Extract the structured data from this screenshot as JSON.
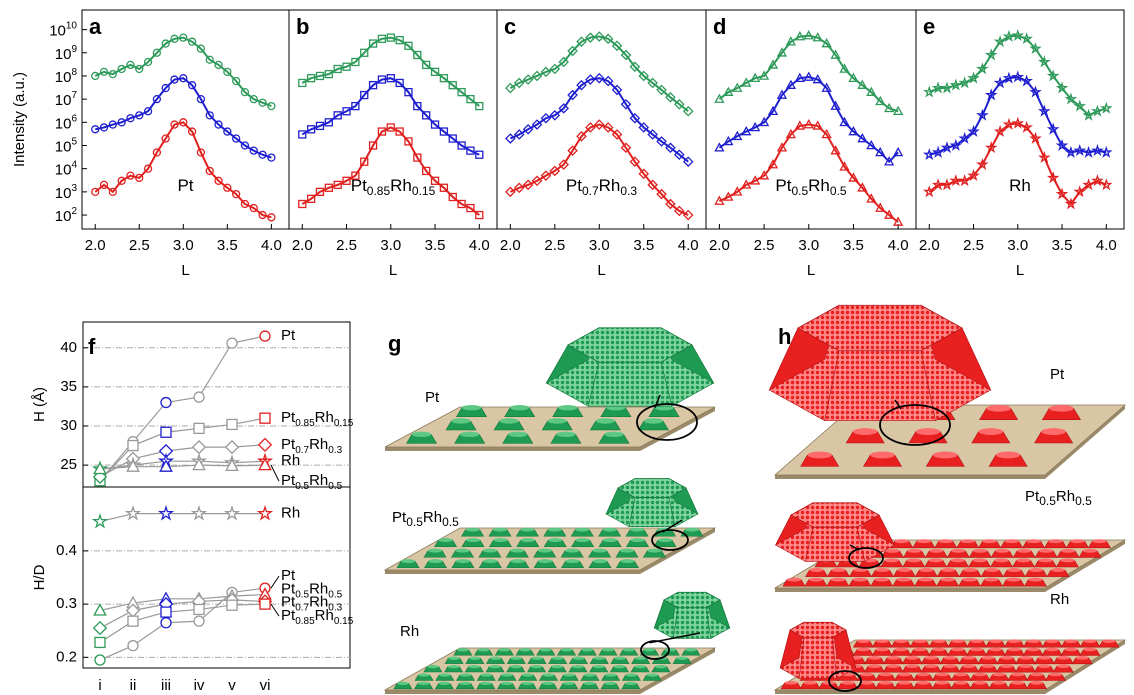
{
  "chart_data": [
    {
      "type": "line",
      "panel": "a",
      "label_parts": [
        "Pt"
      ],
      "log_y": true,
      "marker": "circle",
      "y_label": "Intensity (a.u.)",
      "x_label": "L",
      "xlim": [
        1.85,
        4.2
      ],
      "ylim": [
        25,
        70000000000.0
      ],
      "xticks": [
        {
          "value": 2,
          "label": "2.0"
        },
        2.5,
        {
          "value": 3,
          "label": "3.0"
        },
        3.5,
        {
          "value": 4,
          "label": "4.0"
        }
      ],
      "yticks": [
        {
          "value": 100.0,
          "label": "10",
          "exponent": "2"
        },
        {
          "value": 1000.0,
          "label": "10",
          "exponent": "3"
        },
        {
          "value": 10000.0,
          "label": "10",
          "exponent": "4"
        },
        {
          "value": 100000.0,
          "label": "10",
          "exponent": "5"
        },
        {
          "value": 1000000.0,
          "label": "10",
          "exponent": "6"
        },
        {
          "value": 10000000.0,
          "label": "10",
          "exponent": "7"
        },
        {
          "value": 100000000.0,
          "label": "10",
          "exponent": "8"
        },
        {
          "value": 1000000000.0,
          "label": "10",
          "exponent": "9"
        },
        {
          "value": 10000000000.0,
          "label": "10",
          "exponent": "10"
        }
      ],
      "x": [
        2.0,
        2.1,
        2.2,
        2.3,
        2.4,
        2.5,
        2.6,
        2.7,
        2.8,
        2.9,
        3.0,
        3.1,
        3.2,
        3.3,
        3.4,
        3.5,
        3.6,
        3.7,
        3.8,
        3.9,
        4.0
      ],
      "series": [
        {
          "color": "#2e9a5a",
          "values": [
            100000000.0,
            150000000.0,
            120000000.0,
            200000000.0,
            300000000.0,
            200000000.0,
            400000000.0,
            1000000000.0,
            2500000000.0,
            4000000000.0,
            4500000000.0,
            3000000000.0,
            1500000000.0,
            500000000.0,
            300000000.0,
            150000000.0,
            60000000.0,
            20000000.0,
            10000000.0,
            7000000.0,
            5000000.0
          ]
        },
        {
          "color": "#1f1fd0",
          "values": [
            500000.0,
            600000.0,
            800000.0,
            1000000.0,
            1500000.0,
            2000000.0,
            3000000.0,
            10000000.0,
            30000000.0,
            70000000.0,
            80000000.0,
            40000000.0,
            10000000.0,
            2000000.0,
            800000.0,
            400000.0,
            200000.0,
            100000.0,
            60000.0,
            40000.0,
            30000.0
          ]
        },
        {
          "color": "#e0201e",
          "values": [
            1000.0,
            2000.0,
            1000.0,
            3000.0,
            5000.0,
            4000.0,
            10000.0,
            50000.0,
            200000.0,
            800000.0,
            1000000.0,
            400000.0,
            50000.0,
            8000.0,
            3000.0,
            1500.0,
            800.0,
            300.0,
            200.0,
            100.0,
            80.0
          ]
        }
      ]
    },
    {
      "type": "line",
      "panel": "b",
      "label_parts": [
        "Pt",
        "0.85",
        "Rh",
        "0.15"
      ],
      "log_y": true,
      "marker": "square",
      "x_label": "L",
      "xlim": [
        1.85,
        4.2
      ],
      "ylim": [
        25,
        70000000000.0
      ],
      "xticks": [
        {
          "value": 2,
          "label": "2.0"
        },
        2.5,
        {
          "value": 3,
          "label": "3.0"
        },
        3.5,
        {
          "value": 4,
          "label": "4.0"
        }
      ],
      "x": [
        2.0,
        2.1,
        2.2,
        2.3,
        2.4,
        2.5,
        2.6,
        2.7,
        2.8,
        2.9,
        3.0,
        3.1,
        3.2,
        3.3,
        3.4,
        3.5,
        3.6,
        3.7,
        3.8,
        3.9,
        4.0
      ],
      "series": [
        {
          "color": "#2e9a5a",
          "values": [
            50000000.0,
            80000000.0,
            100000000.0,
            120000000.0,
            200000000.0,
            250000000.0,
            400000000.0,
            1000000000.0,
            2500000000.0,
            4000000000.0,
            4500000000.0,
            3500000000.0,
            2000000000.0,
            800000000.0,
            300000000.0,
            150000000.0,
            80000000.0,
            40000000.0,
            20000000.0,
            10000000.0,
            5000000.0
          ]
        },
        {
          "color": "#1f1fd0",
          "values": [
            300000.0,
            500000.0,
            700000.0,
            1000000.0,
            2000000.0,
            3000000.0,
            5000000.0,
            15000000.0,
            40000000.0,
            70000000.0,
            80000000.0,
            50000000.0,
            20000000.0,
            5000000.0,
            2000000.0,
            800000.0,
            400000.0,
            200000.0,
            100000.0,
            60000.0,
            40000.0
          ]
        },
        {
          "color": "#e0201e",
          "values": [
            300.0,
            500.0,
            1000.0,
            1500.0,
            2000.0,
            3000.0,
            5000.0,
            20000.0,
            100000.0,
            400000.0,
            600000.0,
            400000.0,
            150000.0,
            30000.0,
            8000.0,
            3000.0,
            1500.0,
            600.0,
            300.0,
            200.0,
            100.0
          ]
        }
      ]
    },
    {
      "type": "line",
      "panel": "c",
      "label_parts": [
        "Pt",
        "0.7",
        "Rh",
        "0.3"
      ],
      "log_y": true,
      "marker": "diamond",
      "x_label": "L",
      "xlim": [
        1.85,
        4.2
      ],
      "ylim": [
        25,
        70000000000.0
      ],
      "xticks": [
        {
          "value": 2,
          "label": "2.0"
        },
        2.5,
        {
          "value": 3,
          "label": "3.0"
        },
        3.5,
        {
          "value": 4,
          "label": "4.0"
        }
      ],
      "x": [
        2.0,
        2.1,
        2.2,
        2.3,
        2.4,
        2.5,
        2.6,
        2.7,
        2.8,
        2.9,
        3.0,
        3.1,
        3.2,
        3.3,
        3.4,
        3.5,
        3.6,
        3.7,
        3.8,
        3.9,
        4.0
      ],
      "series": [
        {
          "color": "#2e9a5a",
          "values": [
            30000000.0,
            50000000.0,
            70000000.0,
            100000000.0,
            150000000.0,
            200000000.0,
            400000000.0,
            1200000000.0,
            3000000000.0,
            4500000000.0,
            5000000000.0,
            4000000000.0,
            2000000000.0,
            800000000.0,
            250000000.0,
            100000000.0,
            50000000.0,
            25000000.0,
            12000000.0,
            6000000.0,
            3000000.0
          ]
        },
        {
          "color": "#1f1fd0",
          "values": [
            200000.0,
            300000.0,
            500000.0,
            800000.0,
            1500000.0,
            2000000.0,
            4000000.0,
            15000000.0,
            40000000.0,
            70000000.0,
            80000000.0,
            60000000.0,
            25000000.0,
            6000000.0,
            1500000.0,
            600000.0,
            300000.0,
            150000.0,
            80000.0,
            40000.0,
            20000.0
          ]
        },
        {
          "color": "#e0201e",
          "values": [
            1000.0,
            1500.0,
            2000.0,
            3000.0,
            5000.0,
            8000.0,
            15000.0,
            60000.0,
            250000.0,
            600000.0,
            800000.0,
            600000.0,
            300000.0,
            80000.0,
            20000.0,
            6000.0,
            2000.0,
            800.0,
            300.0,
            150.0,
            100.0
          ]
        }
      ]
    },
    {
      "type": "line",
      "panel": "d",
      "label_parts": [
        "Pt",
        "0.5",
        "Rh",
        "0.5"
      ],
      "log_y": true,
      "marker": "triangle",
      "x_label": "L",
      "xlim": [
        1.85,
        4.2
      ],
      "ylim": [
        25,
        70000000000.0
      ],
      "xticks": [
        {
          "value": 2,
          "label": "2.0"
        },
        2.5,
        {
          "value": 3,
          "label": "3.0"
        },
        3.5,
        {
          "value": 4,
          "label": "4.0"
        }
      ],
      "x": [
        2.0,
        2.1,
        2.2,
        2.3,
        2.4,
        2.5,
        2.6,
        2.7,
        2.8,
        2.9,
        3.0,
        3.1,
        3.2,
        3.3,
        3.4,
        3.5,
        3.6,
        3.7,
        3.8,
        3.9,
        4.0
      ],
      "series": [
        {
          "color": "#2e9a5a",
          "values": [
            10000000.0,
            20000000.0,
            30000000.0,
            50000000.0,
            80000000.0,
            100000000.0,
            300000000.0,
            1000000000.0,
            3000000000.0,
            5000000000.0,
            5500000000.0,
            4500000000.0,
            2500000000.0,
            800000000.0,
            200000000.0,
            80000000.0,
            40000000.0,
            20000000.0,
            8000000.0,
            4000000.0,
            3000000.0
          ]
        },
        {
          "color": "#1f1fd0",
          "values": [
            80000.0,
            150000.0,
            250000.0,
            400000.0,
            600000.0,
            1000000.0,
            3000000.0,
            15000000.0,
            40000000.0,
            80000000.0,
            90000000.0,
            70000000.0,
            30000000.0,
            5000000.0,
            1000000.0,
            400000.0,
            200000.0,
            100000.0,
            50000.0,
            20000.0,
            50000.0
          ]
        },
        {
          "color": "#e0201e",
          "values": [
            400.0,
            600.0,
            1000.0,
            2000.0,
            3000.0,
            5000.0,
            15000.0,
            80000.0,
            300000.0,
            700000.0,
            800000.0,
            700000.0,
            300000.0,
            60000.0,
            12000.0,
            4000.0,
            1500.0,
            500.0,
            200.0,
            100.0,
            50.0
          ]
        }
      ]
    },
    {
      "type": "line",
      "panel": "e",
      "label_parts": [
        "Rh"
      ],
      "log_y": true,
      "marker": "star",
      "x_label": "L",
      "xlim": [
        1.85,
        4.2
      ],
      "ylim": [
        25,
        70000000000.0
      ],
      "xticks": [
        {
          "value": 2,
          "label": "2.0"
        },
        2.5,
        {
          "value": 3,
          "label": "3.0"
        },
        3.5,
        {
          "value": 4,
          "label": "4.0"
        }
      ],
      "x": [
        2.0,
        2.1,
        2.2,
        2.3,
        2.4,
        2.5,
        2.6,
        2.7,
        2.8,
        2.9,
        3.0,
        3.1,
        3.2,
        3.3,
        3.4,
        3.5,
        3.6,
        3.7,
        3.8,
        3.9,
        4.0
      ],
      "series": [
        {
          "color": "#2e9a5a",
          "values": [
            20000000.0,
            30000000.0,
            30000000.0,
            40000000.0,
            50000000.0,
            80000000.0,
            200000000.0,
            800000000.0,
            3000000000.0,
            5000000000.0,
            5500000000.0,
            4000000000.0,
            1500000000.0,
            400000000.0,
            100000000.0,
            30000000.0,
            10000000.0,
            5000000.0,
            2000000.0,
            3000000.0,
            4000000.0
          ]
        },
        {
          "color": "#1f1fd0",
          "values": [
            40000.0,
            50000.0,
            80000.0,
            100000.0,
            200000.0,
            400000.0,
            2000000.0,
            15000000.0,
            50000000.0,
            80000000.0,
            90000000.0,
            60000000.0,
            20000000.0,
            3000000.0,
            500000.0,
            100000.0,
            50000.0,
            60000.0,
            50000.0,
            60000.0,
            50000.0
          ]
        },
        {
          "color": "#e0201e",
          "values": [
            1000.0,
            2000.0,
            2000.0,
            3000.0,
            3000.0,
            5000.0,
            15000.0,
            80000.0,
            400000.0,
            800000.0,
            900000.0,
            600000.0,
            200000.0,
            30000.0,
            4000.0,
            800.0,
            300.0,
            1000.0,
            2000.0,
            3000.0,
            2000.0
          ]
        }
      ]
    },
    {
      "type": "line",
      "panel": "f",
      "y_label": "H (Å)",
      "ylim": [
        22.2,
        43.3
      ],
      "yticks": [
        25,
        30,
        35,
        40
      ],
      "grid": true,
      "line_color": "#999999",
      "series": [
        {
          "name_parts": [
            "Pt"
          ],
          "marker": "circle",
          "values": [
            23,
            28,
            33,
            33.7,
            40.6,
            41.5
          ]
        },
        {
          "name_parts": [
            "Pt",
            "0.85",
            "Rh",
            "0.15"
          ],
          "marker": "square",
          "values": [
            23,
            27.5,
            29.2,
            29.7,
            30.2,
            31
          ]
        },
        {
          "name_parts": [
            "Pt",
            "0.7",
            "Rh",
            "0.3"
          ],
          "marker": "diamond",
          "values": [
            23.5,
            25.8,
            26.8,
            27.3,
            27.3,
            27.6
          ]
        },
        {
          "name_parts": [
            "Rh"
          ],
          "marker": "star",
          "values": [
            24.5,
            25,
            25.5,
            25.5,
            25.3,
            25.5
          ]
        },
        {
          "name_parts": [
            "Pt",
            "0.5",
            "Rh",
            "0.5"
          ],
          "marker": "triangle",
          "values": [
            24.5,
            24.8,
            24.8,
            25,
            24.9,
            25
          ]
        }
      ]
    },
    {
      "type": "line",
      "y_label": "H/D",
      "ylim": [
        0.18,
        0.52
      ],
      "yticks": [
        0.2,
        0.3,
        0.4
      ],
      "grid": true,
      "line_color": "#999999",
      "categories": [
        "i",
        "ii",
        "iii",
        "iv",
        "v",
        "vi"
      ],
      "category_colors": [
        "#2e9a5a",
        "#999999",
        "#1f1fd0",
        "#999999",
        "#999999",
        "#e0201e"
      ],
      "series": [
        {
          "name_parts": [
            "Rh"
          ],
          "marker": "star",
          "values": [
            0.455,
            0.47,
            0.47,
            0.47,
            0.47,
            0.47
          ]
        },
        {
          "name_parts": [
            "Pt"
          ],
          "marker": "circle",
          "values": [
            0.195,
            0.222,
            0.265,
            0.268,
            0.322,
            0.33
          ]
        },
        {
          "name_parts": [
            "Pt",
            "0.5",
            "Rh",
            "0.5"
          ],
          "marker": "triangle",
          "values": [
            0.288,
            0.302,
            0.31,
            0.31,
            0.315,
            0.318
          ]
        },
        {
          "name_parts": [
            "Pt",
            "0.7",
            "Rh",
            "0.3"
          ],
          "marker": "diamond",
          "values": [
            0.255,
            0.288,
            0.3,
            0.305,
            0.308,
            0.305
          ]
        },
        {
          "name_parts": [
            "Pt",
            "0.85",
            "Rh",
            "0.15"
          ],
          "marker": "square",
          "values": [
            0.228,
            0.268,
            0.285,
            0.29,
            0.298,
            0.3
          ]
        }
      ]
    }
  ],
  "diagrams": [
    {
      "label": "g",
      "captions": [
        [
          "Pt"
        ],
        [
          "Pt",
          "0.5",
          "Rh",
          "0.5"
        ],
        [
          "Rh"
        ]
      ]
    },
    {
      "label": "h",
      "captions": [
        [
          "Pt"
        ],
        [
          "Pt",
          "0.5",
          "Rh",
          "0.5"
        ],
        [
          "Rh"
        ]
      ]
    }
  ]
}
